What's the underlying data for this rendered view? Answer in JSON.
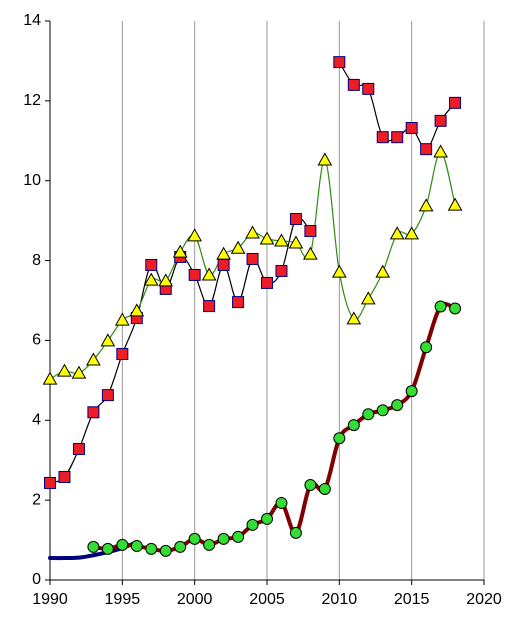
{
  "chart_data": {
    "type": "line",
    "smooth": true,
    "grid": "x",
    "x": [
      1990,
      1991,
      1992,
      1993,
      1994,
      1995,
      1996,
      1997,
      1998,
      1999,
      2000,
      2001,
      2002,
      2003,
      2004,
      2005,
      2006,
      2007,
      2008,
      2009,
      2010,
      2011,
      2012,
      2013,
      2014,
      2015,
      2016,
      2017,
      2018
    ],
    "xlim": [
      1990,
      2020
    ],
    "xticks": [
      1990,
      1995,
      2000,
      2005,
      2010,
      2015,
      2020
    ],
    "ylim": [
      0,
      14
    ],
    "yticks": [
      0,
      2,
      4,
      6,
      8,
      10,
      12,
      14
    ],
    "series": [
      {
        "color": "#000000",
        "marker": "square",
        "marker_color": "#ee1c25",
        "line_width": 1.2,
        "values": [
          2.43,
          2.58,
          3.28,
          4.2,
          4.63,
          5.66,
          6.56,
          7.89,
          7.29,
          8.09,
          7.64,
          6.86,
          7.89,
          6.96,
          8.04,
          7.44,
          7.74,
          9.04,
          8.74,
          null,
          12.97,
          12.4,
          12.3,
          11.09,
          11.09,
          11.32,
          10.79,
          11.5,
          11.95
        ]
      },
      {
        "color": "#2e8b10",
        "marker": "triangle",
        "marker_color": "#ffff00",
        "line_width": 1.2,
        "values": [
          5.03,
          5.23,
          5.18,
          5.51,
          5.99,
          6.51,
          6.74,
          7.51,
          7.49,
          8.21,
          8.62,
          7.64,
          8.16,
          8.31,
          8.69,
          8.54,
          8.49,
          8.44,
          8.16,
          10.52,
          7.71,
          6.54,
          7.04,
          7.71,
          8.67,
          8.67,
          9.37,
          10.72,
          9.39
        ]
      },
      {
        "color": "#000080",
        "marker": "none",
        "line_width": 4,
        "values": [
          0.55,
          0.55,
          0.56,
          0.62,
          0.7,
          0.8,
          0.95,
          null,
          null,
          null,
          null,
          null,
          null,
          null,
          null,
          null,
          null,
          null,
          null,
          null,
          null,
          null,
          null,
          null,
          null,
          null,
          null,
          null,
          null
        ]
      },
      {
        "color": "#800000",
        "marker": "circle",
        "marker_color": "#33dd33",
        "line_width": 4,
        "values": [
          null,
          null,
          null,
          0.83,
          0.78,
          0.88,
          0.85,
          0.78,
          0.73,
          0.83,
          1.03,
          0.88,
          1.03,
          1.08,
          1.38,
          1.53,
          1.93,
          1.18,
          2.38,
          2.28,
          3.55,
          3.88,
          4.15,
          4.25,
          4.38,
          4.73,
          5.83,
          6.85,
          6.8
        ]
      }
    ]
  }
}
